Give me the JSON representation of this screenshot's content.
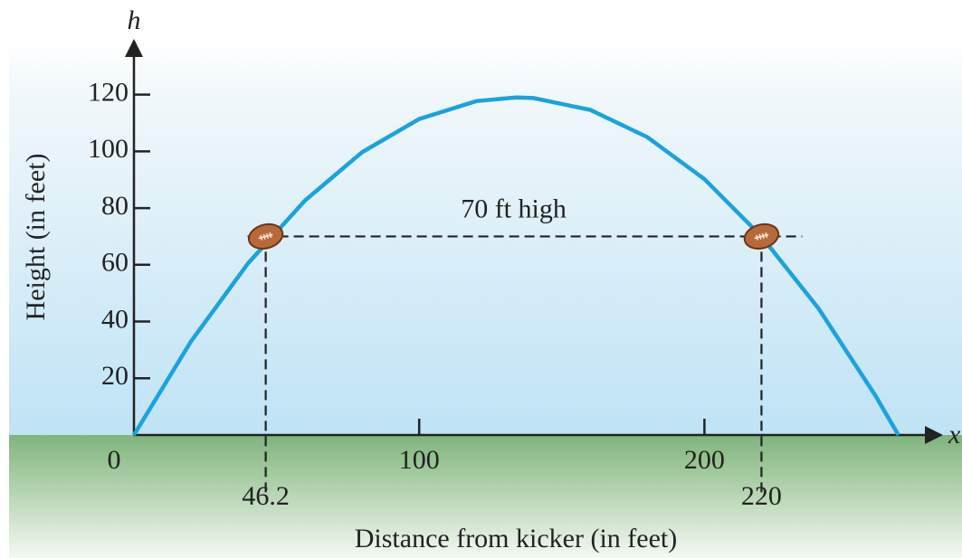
{
  "chart_data": {
    "type": "line",
    "x": [
      0,
      20,
      40,
      60,
      80,
      100,
      120,
      134,
      140,
      160,
      180,
      200,
      220,
      240,
      260,
      268
    ],
    "series": [
      {
        "color": "#1ba3dc",
        "values": [
          0,
          33,
          60.5,
          82.7,
          99.7,
          111.4,
          117.7,
          119,
          118.8,
          114.6,
          105,
          90.2,
          70,
          44.6,
          13.8,
          0
        ]
      }
    ],
    "xlim": [
      0,
      283
    ],
    "ylim": [
      0,
      139
    ],
    "xticks": [
      0,
      100,
      200
    ],
    "yticks": [
      20,
      40,
      60,
      80,
      100,
      120
    ],
    "x_axis_name": "x",
    "y_axis_name": "h",
    "x_label": "Distance from kicker (in feet)",
    "y_label": "Height (in feet)",
    "marked_x": [
      46.2,
      220
    ],
    "marked_y": 70,
    "annotation": "70 ft high"
  }
}
